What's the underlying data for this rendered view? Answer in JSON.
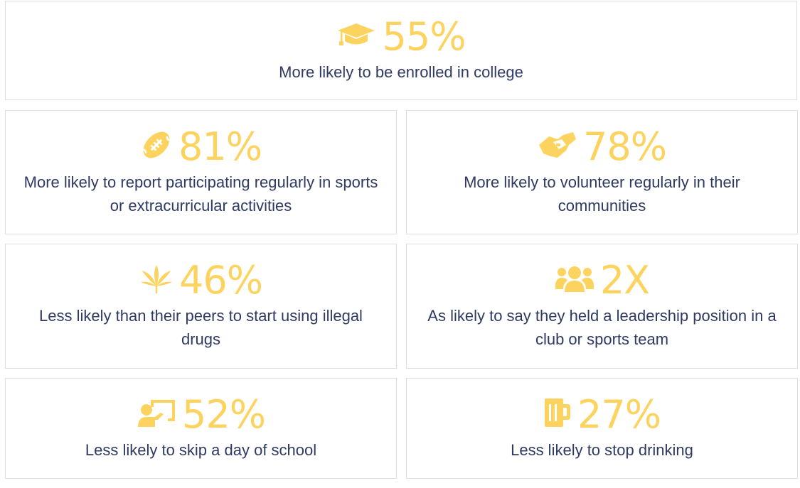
{
  "colors": {
    "accent": "#fdd360",
    "text": "#2f3a63",
    "border": "#dedede"
  },
  "stats": [
    {
      "icon": "graduation-cap-icon",
      "value": "55%",
      "description": "More likely to be enrolled in college"
    },
    {
      "icon": "football-icon",
      "value": "81%",
      "description": "More likely to report participating regularly in sports or extracurricular activities"
    },
    {
      "icon": "handshake-icon",
      "value": "78%",
      "description": "More likely to volunteer regularly in their communities"
    },
    {
      "icon": "cannabis-leaf-icon",
      "value": "46%",
      "description": "Less likely than their peers to start using illegal drugs"
    },
    {
      "icon": "users-icon",
      "value": "2X",
      "description": "As likely to say they held a leadership position in a club or sports team"
    },
    {
      "icon": "chalkboard-teacher-icon",
      "value": "52%",
      "description": "Less likely to skip a day of school"
    },
    {
      "icon": "beer-mug-icon",
      "value": "27%",
      "description": "Less likely to stop drinking"
    }
  ]
}
